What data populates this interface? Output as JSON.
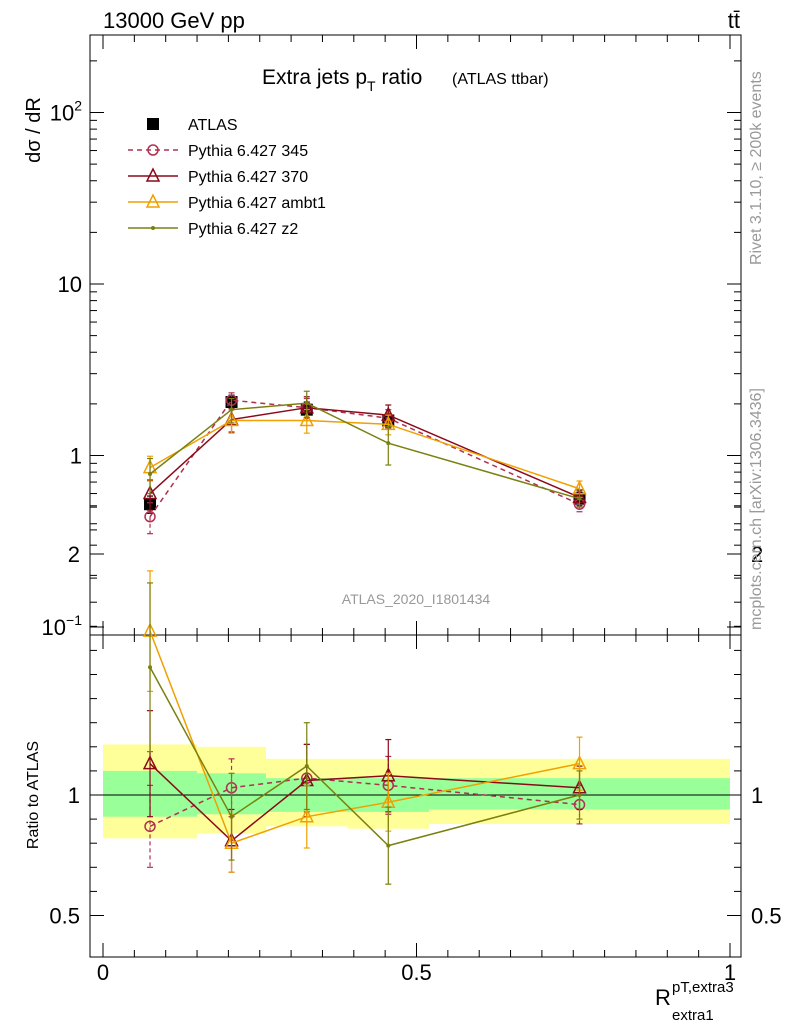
{
  "header": {
    "energy_label": "13000 GeV pp",
    "process_label": "tt̄"
  },
  "side_labels": {
    "rivet": "Rivet 3.1.10, ≥ 200k events",
    "mcplots": "mcplots.cern.ch [arXiv:1306.3436]"
  },
  "chart_data": [
    {
      "type": "line",
      "panel": "main",
      "title": "Extra jets p",
      "title_sub": "T",
      "title_suffix": " ratio",
      "title_note": "(ATLAS ttbar)",
      "analysis_id": "ATLAS_2020_I1801434",
      "ylabel": "dσ / dR",
      "yscale": "log",
      "ylim": [
        0.1,
        300
      ],
      "xlim": [
        0,
        1
      ],
      "y_ticks": [
        {
          "value": 0.1,
          "label": "10",
          "sup": "−1"
        },
        {
          "value": 1,
          "label": "1",
          "sup": ""
        },
        {
          "value": 10,
          "label": "10",
          "sup": ""
        },
        {
          "value": 100,
          "label": "10",
          "sup": "2"
        }
      ],
      "x_bins": [
        [
          0,
          0.15
        ],
        [
          0.15,
          0.26
        ],
        [
          0.26,
          0.39
        ],
        [
          0.39,
          0.52
        ],
        [
          0.52,
          1.0
        ]
      ],
      "x": [
        0.075,
        0.205,
        0.325,
        0.455,
        0.76
      ],
      "series": [
        {
          "name": "ATLAS",
          "values": [
            0.52,
            2.05,
            1.85,
            1.6,
            0.56
          ],
          "err": [
            0.06,
            0.2,
            0.2,
            0.15,
            0.05
          ],
          "color": "#000000",
          "marker": "square",
          "dash": "none"
        },
        {
          "name": "Pythia 6.427 345",
          "values": [
            0.44,
            2.1,
            1.9,
            1.65,
            0.52
          ],
          "err": [
            0.09,
            0.22,
            0.25,
            0.2,
            0.05
          ],
          "color": "#b03050",
          "marker": "circle",
          "dash": "dashed"
        },
        {
          "name": "Pythia 6.427 370",
          "values": [
            0.6,
            1.62,
            1.9,
            1.72,
            0.57
          ],
          "err": [
            0.12,
            0.25,
            0.3,
            0.25,
            0.06
          ],
          "color": "#8b0a1a",
          "marker": "triangle",
          "dash": "none"
        },
        {
          "name": "Pythia 6.427 ambt1",
          "values": [
            0.85,
            1.6,
            1.6,
            1.52,
            0.64
          ],
          "err": [
            0.14,
            0.25,
            0.25,
            0.2,
            0.07
          ],
          "color": "#f0a000",
          "marker": "triangle",
          "dash": "none"
        },
        {
          "name": "Pythia 6.427 z2",
          "values": [
            0.78,
            1.85,
            2.02,
            1.18,
            0.56
          ],
          "err": [
            0.18,
            0.3,
            0.35,
            0.3,
            0.06
          ],
          "color": "#7a8010",
          "marker": "dot",
          "dash": "none"
        }
      ]
    },
    {
      "type": "line",
      "panel": "ratio",
      "ylabel": "Ratio to ATLAS",
      "xlabel": "R",
      "xlabel_sup": "pT,extra3",
      "xlabel_sub": "extra1",
      "ylim": [
        0.5,
        2.3
      ],
      "xlim": [
        0,
        1
      ],
      "y_ticks": [
        {
          "value": 0.5,
          "label": "0.5"
        },
        {
          "value": 1,
          "label": "1"
        },
        {
          "value": 2,
          "label": "2"
        }
      ],
      "x_ticks": [
        {
          "value": 0,
          "label": "0"
        },
        {
          "value": 0.5,
          "label": "0.5"
        },
        {
          "value": 1,
          "label": "1"
        }
      ],
      "bands": [
        {
          "x": [
            0,
            0.15
          ],
          "inner": [
            0.91,
            1.1
          ],
          "outer": [
            0.82,
            1.21
          ]
        },
        {
          "x": [
            0.15,
            0.26
          ],
          "inner": [
            0.92,
            1.09
          ],
          "outer": [
            0.84,
            1.2
          ]
        },
        {
          "x": [
            0.26,
            0.39
          ],
          "inner": [
            0.93,
            1.07
          ],
          "outer": [
            0.87,
            1.15
          ]
        },
        {
          "x": [
            0.39,
            0.52
          ],
          "inner": [
            0.93,
            1.07
          ],
          "outer": [
            0.86,
            1.15
          ]
        },
        {
          "x": [
            0.52,
            1.0
          ],
          "inner": [
            0.94,
            1.07
          ],
          "outer": [
            0.88,
            1.15
          ]
        }
      ],
      "x": [
        0.075,
        0.205,
        0.325,
        0.455,
        0.76
      ],
      "series": [
        {
          "name": "Pythia 6.427 345",
          "values": [
            0.87,
            1.03,
            1.07,
            1.04,
            0.96
          ],
          "err": [
            0.17,
            0.12,
            0.14,
            0.12,
            0.08
          ],
          "color": "#b03050",
          "marker": "circle",
          "dash": "dashed"
        },
        {
          "name": "Pythia 6.427 370",
          "values": [
            1.13,
            0.81,
            1.06,
            1.08,
            1.03
          ],
          "err": [
            0.22,
            0.13,
            0.15,
            0.15,
            0.09
          ],
          "color": "#8b0a1a",
          "marker": "triangle",
          "dash": "none"
        },
        {
          "name": "Pythia 6.427 ambt1",
          "values": [
            1.68,
            0.8,
            0.91,
            0.97,
            1.13
          ],
          "err": [
            0.25,
            0.12,
            0.13,
            0.12,
            0.11
          ],
          "color": "#f0a000",
          "marker": "triangle",
          "dash": "none"
        },
        {
          "name": "Pythia 6.427 z2",
          "values": [
            1.53,
            0.91,
            1.12,
            0.79,
            1.0
          ],
          "err": [
            0.35,
            0.18,
            0.18,
            0.16,
            0.1
          ],
          "color": "#7a8010",
          "marker": "dot",
          "dash": "none"
        }
      ]
    }
  ]
}
